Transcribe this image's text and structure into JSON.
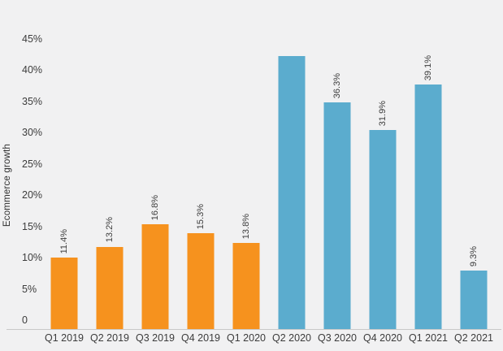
{
  "colors": {
    "background": "#f1f1f2",
    "bar_orange": "#f6921e",
    "bar_blue": "#5bacce",
    "axis_line": "#c9c9c9",
    "text": "#3c3c3c"
  },
  "chart_data": {
    "type": "bar",
    "title": "",
    "xlabel": "",
    "ylabel": "Ecommerce growth",
    "categories": [
      "Q1 2019",
      "Q2 2019",
      "Q3 2019",
      "Q4 2019",
      "Q1 2020",
      "Q2 2020",
      "Q3 2020",
      "Q4 2020",
      "Q1 2021",
      "Q2 2021"
    ],
    "values": [
      11.4,
      13.2,
      16.8,
      15.3,
      13.8,
      43.7,
      36.3,
      31.9,
      39.1,
      9.3
    ],
    "data_labels": [
      "11.4%",
      "13.2%",
      "16.8%",
      "15.3%",
      "13.8%",
      "",
      "36.3%",
      "31.9%",
      "39.1%",
      "9.3%"
    ],
    "bar_colors": [
      "#f6921e",
      "#f6921e",
      "#f6921e",
      "#f6921e",
      "#f6921e",
      "#5bacce",
      "#5bacce",
      "#5bacce",
      "#5bacce",
      "#5bacce"
    ],
    "yaxis": {
      "tick_labels": [
        "0",
        "5%",
        "10%",
        "15%",
        "20%",
        "25%",
        "30%",
        "35%",
        "40%",
        "45%"
      ],
      "tick_values": [
        0,
        5,
        10,
        15,
        20,
        25,
        30,
        35,
        40,
        45
      ],
      "range": [
        0,
        45
      ],
      "grid": false
    },
    "legend": "none"
  }
}
